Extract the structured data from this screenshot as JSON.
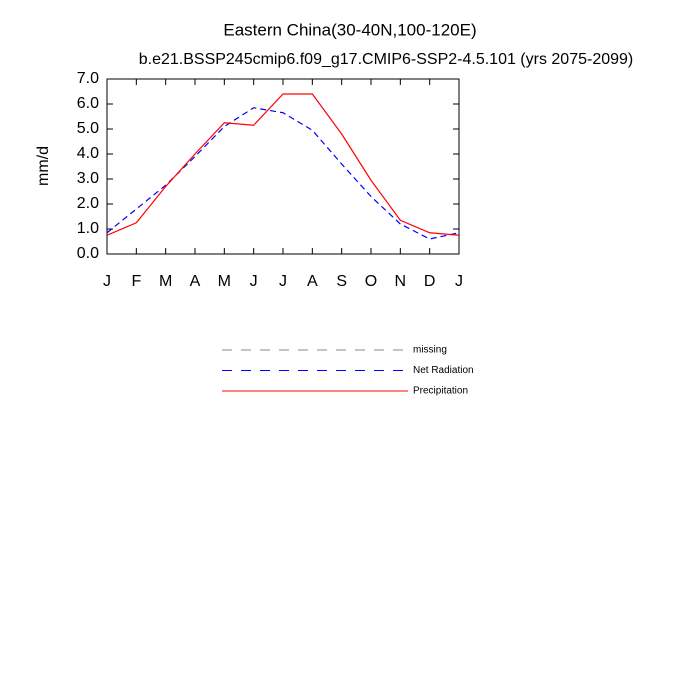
{
  "chart_data": {
    "type": "line",
    "title": "Eastern China(30-40N,100-120E)",
    "subtitle": "b.e21.BSSP245cmip6.f09_g17.CMIP6-SSP2-4.5.101 (yrs 2075-2099)",
    "y_label": "mm/d",
    "categories": [
      "J",
      "F",
      "M",
      "A",
      "M",
      "J",
      "J",
      "A",
      "S",
      "O",
      "N",
      "D",
      "J"
    ],
    "series": [
      {
        "name": "missing",
        "color": "#888888",
        "dash": true,
        "values": [
          null,
          null,
          null,
          null,
          null,
          null,
          null,
          null,
          null,
          null,
          null,
          null,
          null
        ]
      },
      {
        "name": "Net Radiation",
        "color": "#0000ff",
        "dash": true,
        "values": [
          0.85,
          1.8,
          2.75,
          3.9,
          5.1,
          5.85,
          5.65,
          4.95,
          3.6,
          2.3,
          1.2,
          0.6,
          0.85
        ]
      },
      {
        "name": "Precipitation",
        "color": "#ff0000",
        "dash": false,
        "values": [
          0.75,
          1.25,
          2.7,
          4.0,
          5.25,
          5.15,
          6.4,
          6.4,
          4.8,
          2.95,
          1.35,
          0.85,
          0.75
        ]
      }
    ],
    "ylim": [
      0,
      7
    ],
    "yticks": [
      {
        "value": 0,
        "label": "0.0"
      },
      {
        "value": 1,
        "label": "1.0"
      },
      {
        "value": 2,
        "label": "2.0"
      },
      {
        "value": 3,
        "label": "3.0"
      },
      {
        "value": 4,
        "label": "4.0"
      },
      {
        "value": 5,
        "label": "5.0"
      },
      {
        "value": 6,
        "label": "6.0"
      },
      {
        "value": 7,
        "label": "7.0"
      }
    ]
  }
}
